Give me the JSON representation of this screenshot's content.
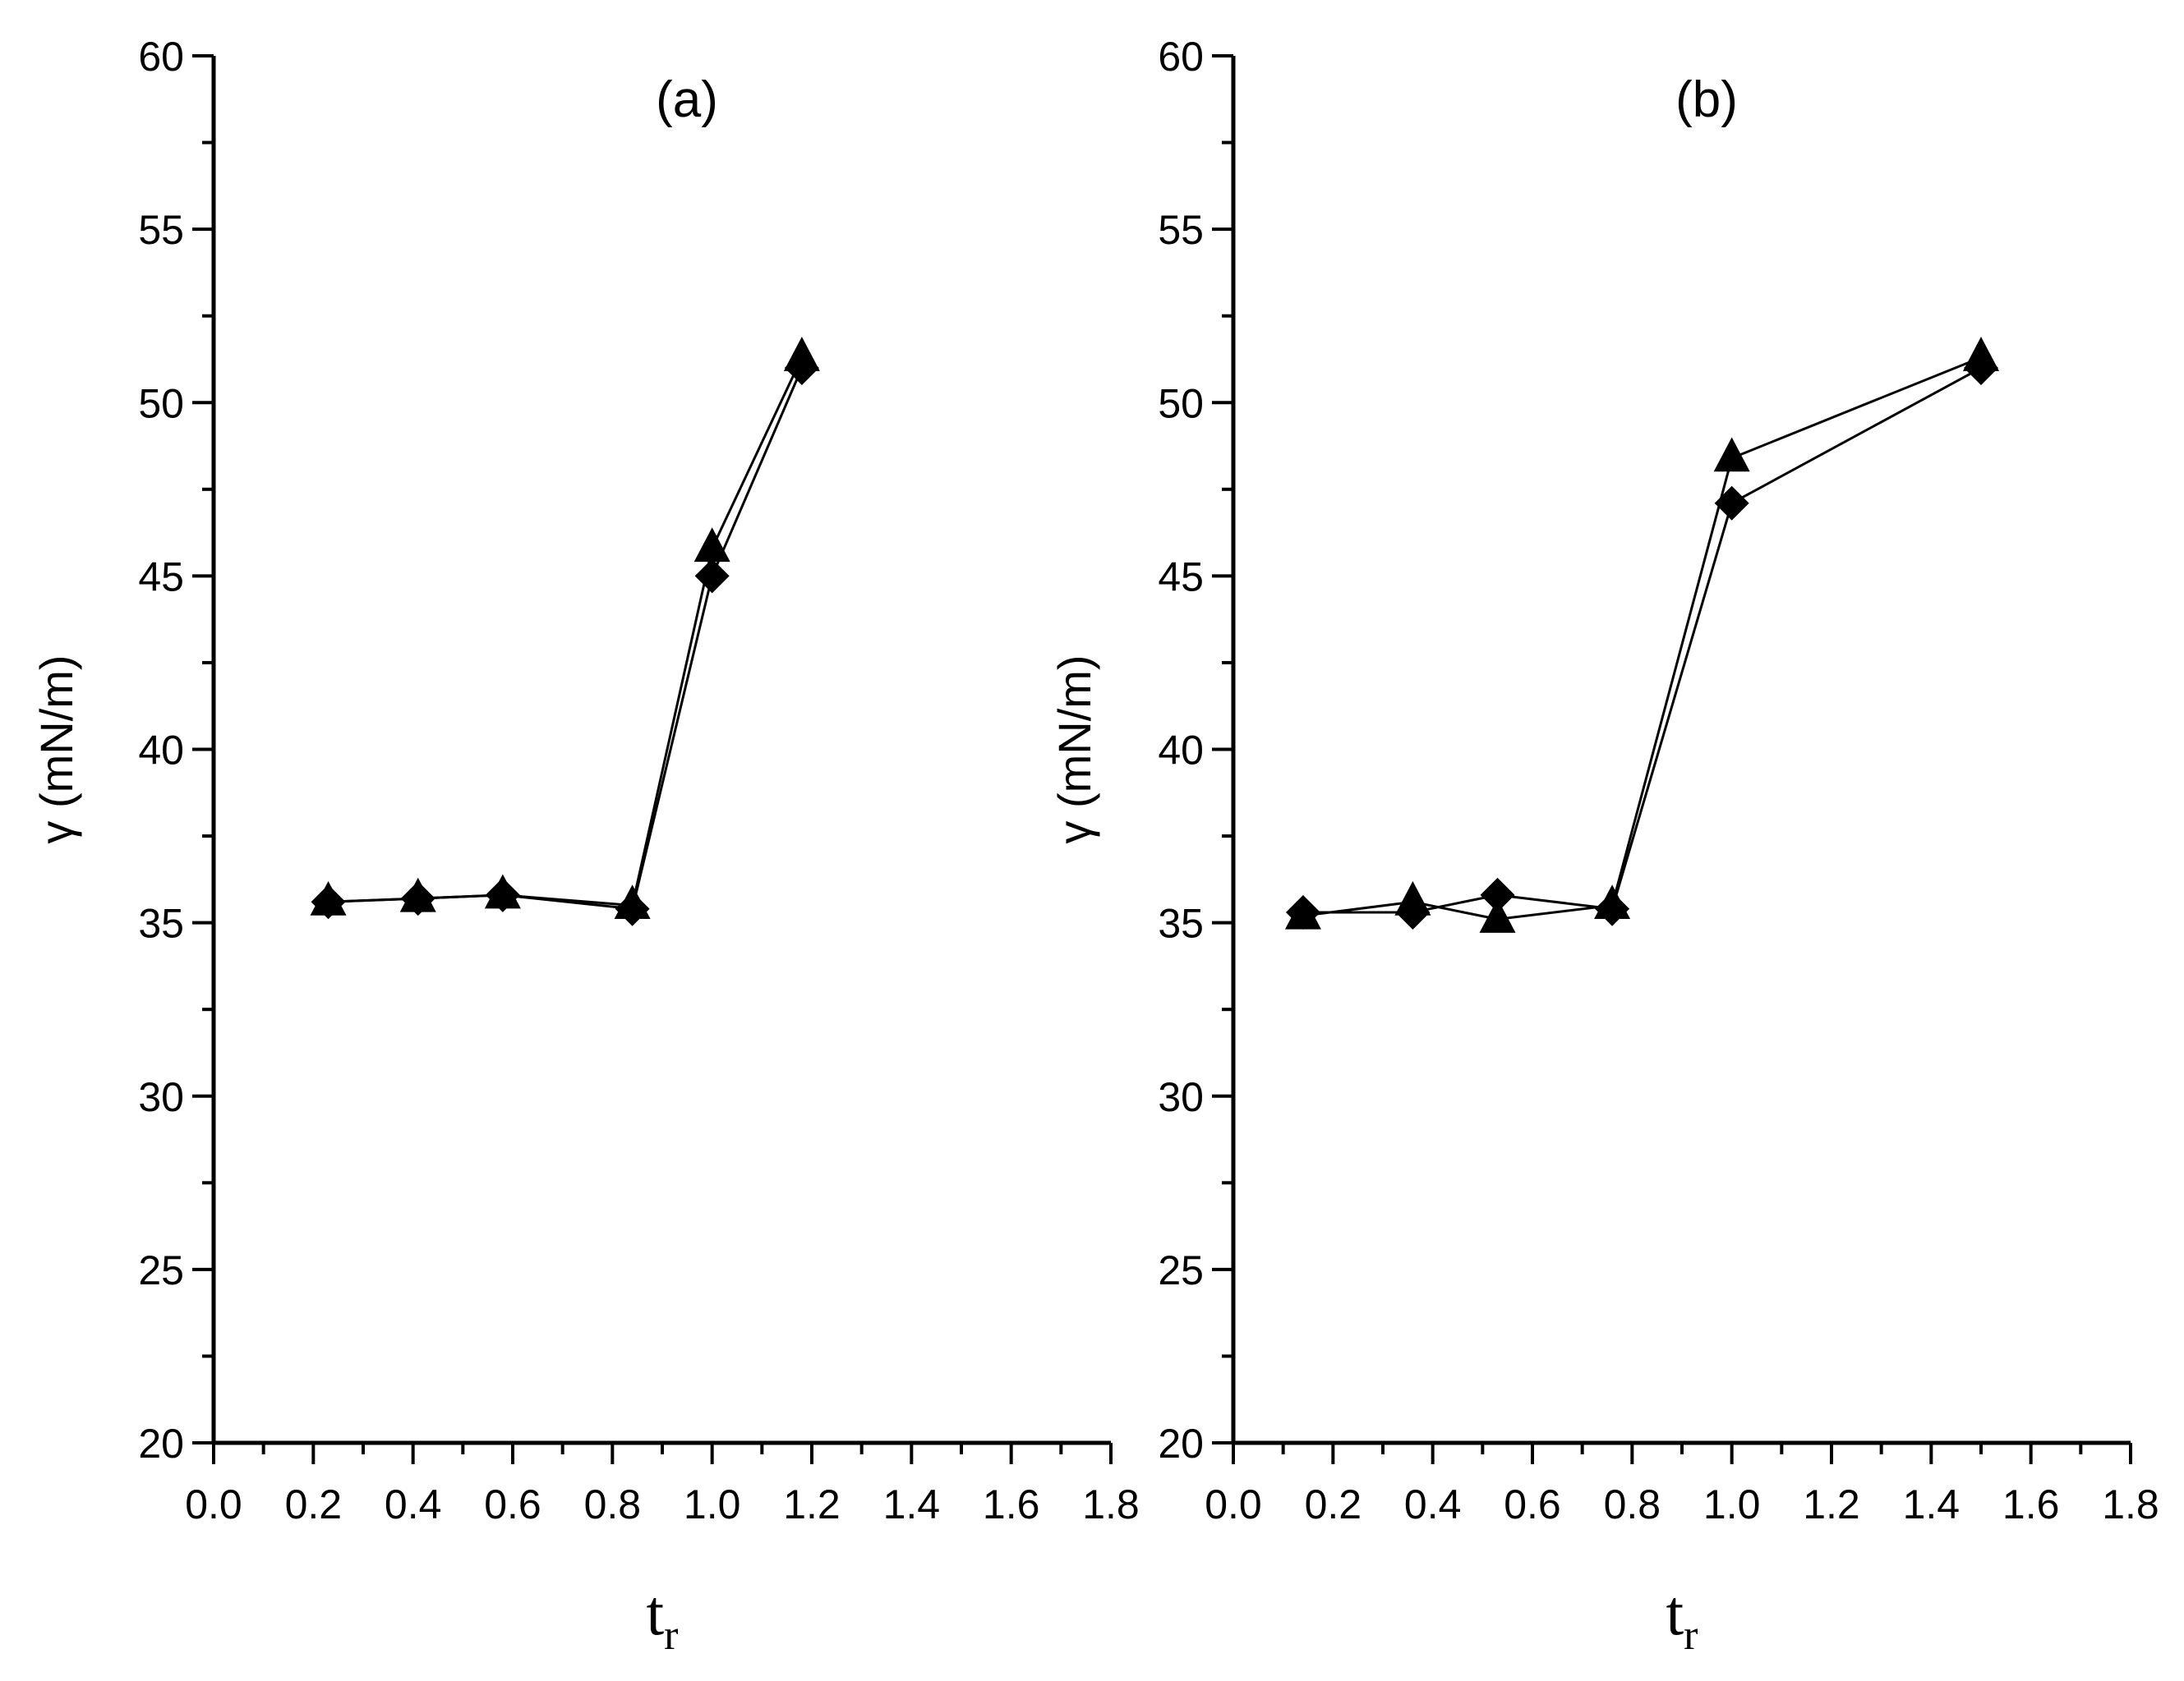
{
  "chart_data": [
    {
      "type": "line",
      "panel_label": "(a)",
      "ylabel": "γ (mN/m)",
      "xlabel_main": "t",
      "xlabel_sub": "r",
      "xlim": [
        0.0,
        1.8
      ],
      "ylim": [
        20,
        60
      ],
      "x_ticks": [
        "0.0",
        "0.2",
        "0.4",
        "0.6",
        "0.8",
        "1.0",
        "1.2",
        "1.4",
        "1.6",
        "1.8"
      ],
      "y_ticks": [
        "20",
        "25",
        "30",
        "35",
        "40",
        "45",
        "50",
        "55",
        "60"
      ],
      "grid": false,
      "series": [
        {
          "name": "triangle",
          "marker": "triangle",
          "x": [
            0.23,
            0.41,
            0.58,
            0.84,
            1.0,
            1.18
          ],
          "y": [
            35.6,
            35.7,
            35.8,
            35.5,
            45.8,
            51.3
          ]
        },
        {
          "name": "diamond",
          "marker": "diamond",
          "x": [
            0.23,
            0.41,
            0.58,
            0.84,
            1.0,
            1.18
          ],
          "y": [
            35.6,
            35.7,
            35.8,
            35.4,
            45.0,
            51.0
          ]
        }
      ]
    },
    {
      "type": "line",
      "panel_label": "(b)",
      "ylabel": "γ (mN/m)",
      "xlabel_main": "t",
      "xlabel_sub": "r",
      "xlim": [
        0.0,
        1.8
      ],
      "ylim": [
        20,
        60
      ],
      "x_ticks": [
        "0.0",
        "0.2",
        "0.4",
        "0.6",
        "0.8",
        "1.0",
        "1.2",
        "1.4",
        "1.6",
        "1.8"
      ],
      "y_ticks": [
        "20",
        "25",
        "30",
        "35",
        "40",
        "45",
        "50",
        "55",
        "60"
      ],
      "grid": false,
      "series": [
        {
          "name": "triangle",
          "marker": "triangle",
          "x": [
            0.14,
            0.36,
            0.53,
            0.76,
            1.0,
            1.5
          ],
          "y": [
            35.2,
            35.6,
            35.1,
            35.5,
            48.4,
            51.3
          ]
        },
        {
          "name": "diamond",
          "marker": "diamond",
          "x": [
            0.14,
            0.36,
            0.53,
            0.76,
            1.0,
            1.5
          ],
          "y": [
            35.3,
            35.3,
            35.8,
            35.4,
            47.1,
            51.0
          ]
        }
      ]
    }
  ]
}
